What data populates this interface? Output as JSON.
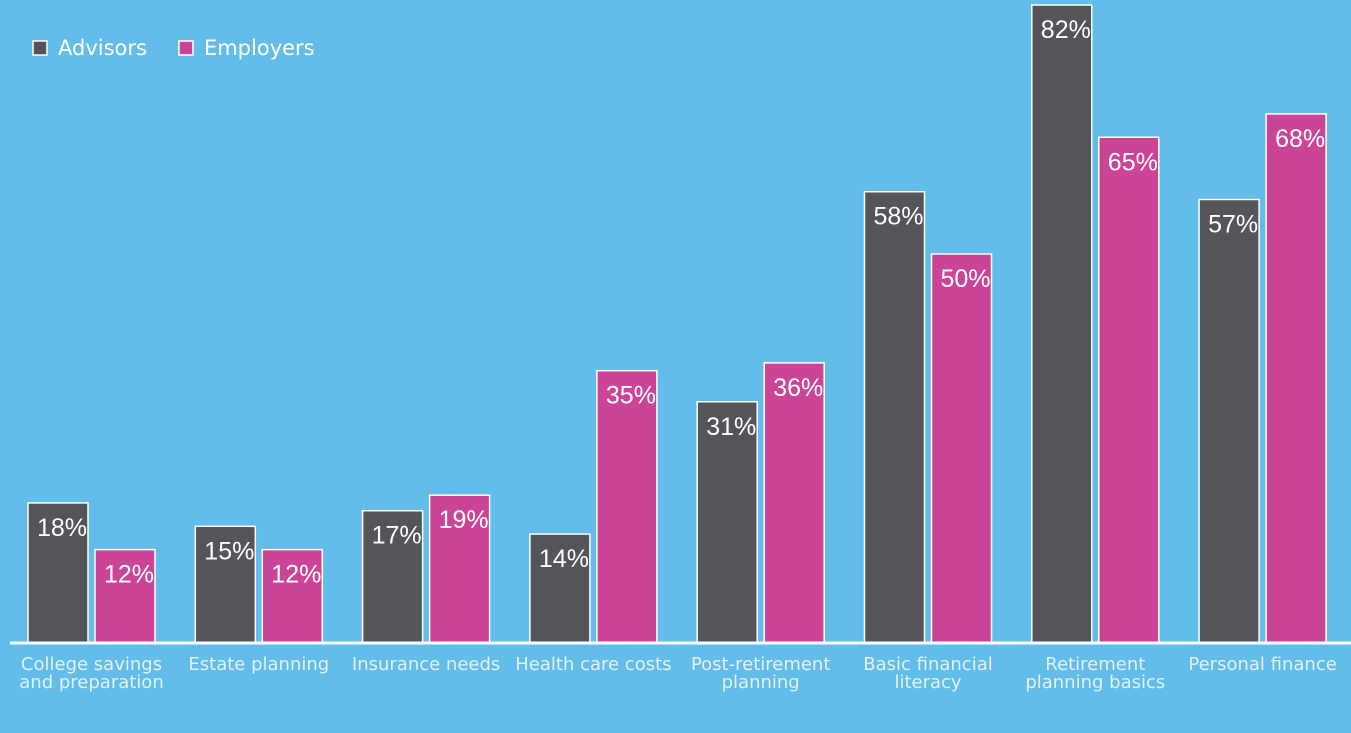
{
  "chart_data": {
    "type": "bar",
    "categories": [
      "College savings and preparation",
      "Estate planning",
      "Insurance needs",
      "Health care costs",
      "Post-retirement planning",
      "Basic financial literacy",
      "Retirement planning basics",
      "Personal finance"
    ],
    "series": [
      {
        "name": "Advisors",
        "color": "#545459",
        "values": [
          18,
          15,
          17,
          14,
          31,
          58,
          82,
          57
        ],
        "value_labels": [
          "18%",
          "15%",
          "17%",
          "14%",
          "31%",
          "58%",
          "82%",
          "57%"
        ]
      },
      {
        "name": "Employers",
        "color": "#cb4497",
        "values": [
          12,
          12,
          19,
          35,
          36,
          50,
          65,
          68
        ],
        "value_labels": [
          "12%",
          "12%",
          "19%",
          "35%",
          "36%",
          "50%",
          "65%",
          "68%"
        ]
      }
    ],
    "legend": "top-left"
  }
}
